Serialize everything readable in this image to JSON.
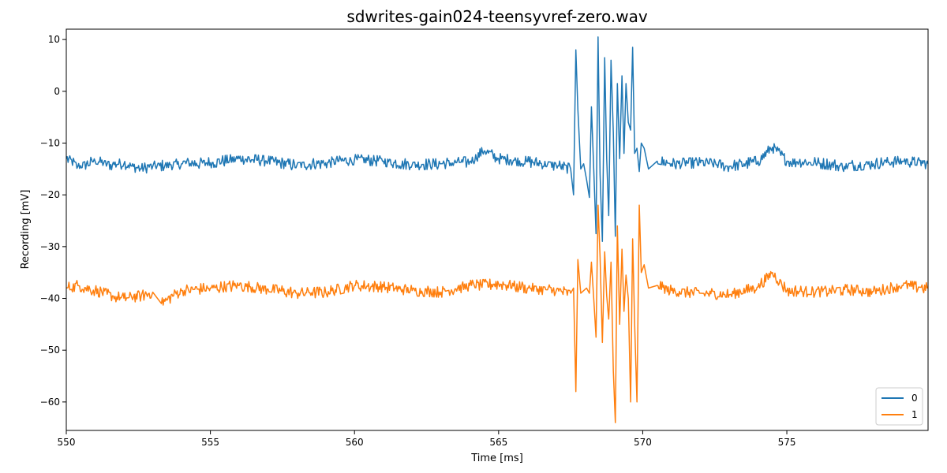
{
  "chart_data": {
    "type": "line",
    "title": "sdwrites-gain024-teensyvref-zero.wav",
    "xlabel": "Time [ms]",
    "ylabel": "Recording [mV]",
    "xlim": [
      550,
      579.9
    ],
    "ylim": [
      -65.5,
      12
    ],
    "xticks": [
      550,
      555,
      560,
      565,
      570,
      575
    ],
    "yticks": [
      10,
      0,
      -10,
      -20,
      -30,
      -40,
      -50,
      -60
    ],
    "xtick_labels": [
      "550",
      "555",
      "560",
      "565",
      "570",
      "575"
    ],
    "ytick_labels": [
      "10",
      "0",
      "−10",
      "−20",
      "−30",
      "−40",
      "−50",
      "−60"
    ],
    "grid": false,
    "legend_position": "bottom-right",
    "series": [
      {
        "name": "0",
        "color": "#1f77b4",
        "base": -14,
        "points": [
          [
            550,
            -13
          ],
          [
            550.4,
            -14.5
          ],
          [
            551,
            -13.5
          ],
          [
            551.6,
            -14.2
          ],
          [
            552,
            -14
          ],
          [
            552.6,
            -15
          ],
          [
            553,
            -14.5
          ],
          [
            554,
            -14
          ],
          [
            555,
            -13.8
          ],
          [
            556,
            -13
          ],
          [
            557,
            -13.5
          ],
          [
            558,
            -14.3
          ],
          [
            559,
            -13.8
          ],
          [
            560,
            -13.2
          ],
          [
            561,
            -13.5
          ],
          [
            562,
            -14.2
          ],
          [
            563,
            -14
          ],
          [
            564,
            -13.6
          ],
          [
            564.5,
            -11.5
          ],
          [
            565,
            -13
          ],
          [
            566,
            -13.6
          ],
          [
            567,
            -14.3
          ],
          [
            567.5,
            -15
          ],
          [
            567.6,
            -20
          ],
          [
            567.68,
            8
          ],
          [
            567.75,
            -3.5
          ],
          [
            567.85,
            -15
          ],
          [
            567.95,
            -14
          ],
          [
            568.05,
            -17
          ],
          [
            568.15,
            -20.5
          ],
          [
            568.22,
            -3
          ],
          [
            568.3,
            -15
          ],
          [
            568.38,
            -27.5
          ],
          [
            568.45,
            10.5
          ],
          [
            568.52,
            -16
          ],
          [
            568.6,
            -29
          ],
          [
            568.68,
            6.5
          ],
          [
            568.75,
            -13
          ],
          [
            568.82,
            -24
          ],
          [
            568.9,
            6
          ],
          [
            568.98,
            -8
          ],
          [
            569.05,
            -28
          ],
          [
            569.12,
            1.5
          ],
          [
            569.2,
            -13
          ],
          [
            569.28,
            3
          ],
          [
            569.35,
            -12
          ],
          [
            569.42,
            1.5
          ],
          [
            569.5,
            -6
          ],
          [
            569.58,
            -7.5
          ],
          [
            569.65,
            8.5
          ],
          [
            569.72,
            -12
          ],
          [
            569.8,
            -11
          ],
          [
            569.88,
            -15.5
          ],
          [
            569.95,
            -10
          ],
          [
            570.05,
            -11
          ],
          [
            570.2,
            -15
          ],
          [
            570.5,
            -13.5
          ],
          [
            571,
            -14
          ],
          [
            572,
            -13.8
          ],
          [
            573,
            -14.5
          ],
          [
            574,
            -13.5
          ],
          [
            574.5,
            -10.8
          ],
          [
            575,
            -13.5
          ],
          [
            576,
            -13.8
          ],
          [
            577,
            -14.5
          ],
          [
            578,
            -14
          ],
          [
            579,
            -13.5
          ],
          [
            579.9,
            -14
          ]
        ]
      },
      {
        "name": "1",
        "color": "#ff7f0e",
        "base": -38.5,
        "points": [
          [
            550,
            -38
          ],
          [
            550.4,
            -37.5
          ],
          [
            551,
            -38.5
          ],
          [
            551.6,
            -39.5
          ],
          [
            552,
            -40
          ],
          [
            552.6,
            -39.5
          ],
          [
            553,
            -38.8
          ],
          [
            553.3,
            -41
          ],
          [
            554,
            -38.5
          ],
          [
            555,
            -38
          ],
          [
            556,
            -37.5
          ],
          [
            557,
            -38.2
          ],
          [
            558,
            -39
          ],
          [
            559,
            -38.8
          ],
          [
            560,
            -37.5
          ],
          [
            561,
            -37.8
          ],
          [
            562,
            -38.5
          ],
          [
            563,
            -38.8
          ],
          [
            564,
            -37.5
          ],
          [
            565,
            -37.2
          ],
          [
            566,
            -38
          ],
          [
            567,
            -38.5
          ],
          [
            567.5,
            -39
          ],
          [
            567.6,
            -38
          ],
          [
            567.68,
            -58
          ],
          [
            567.75,
            -32.5
          ],
          [
            567.85,
            -39
          ],
          [
            567.95,
            -38.5
          ],
          [
            568.05,
            -38
          ],
          [
            568.15,
            -39
          ],
          [
            568.22,
            -33
          ],
          [
            568.3,
            -40
          ],
          [
            568.38,
            -47.5
          ],
          [
            568.45,
            -22
          ],
          [
            568.52,
            -32
          ],
          [
            568.6,
            -48.5
          ],
          [
            568.68,
            -31
          ],
          [
            568.75,
            -39.5
          ],
          [
            568.82,
            -44
          ],
          [
            568.9,
            -33
          ],
          [
            568.98,
            -54
          ],
          [
            569.05,
            -64
          ],
          [
            569.12,
            -26
          ],
          [
            569.2,
            -45
          ],
          [
            569.28,
            -30.5
          ],
          [
            569.35,
            -42.5
          ],
          [
            569.42,
            -35.5
          ],
          [
            569.5,
            -40
          ],
          [
            569.58,
            -60
          ],
          [
            569.65,
            -28.5
          ],
          [
            569.72,
            -45
          ],
          [
            569.8,
            -60
          ],
          [
            569.88,
            -22
          ],
          [
            569.95,
            -35
          ],
          [
            570.05,
            -33.5
          ],
          [
            570.2,
            -38
          ],
          [
            570.5,
            -37.5
          ],
          [
            571,
            -38.5
          ],
          [
            572,
            -39
          ],
          [
            573,
            -39.3
          ],
          [
            574,
            -37.8
          ],
          [
            574.5,
            -35
          ],
          [
            575,
            -38.5
          ],
          [
            576,
            -38.8
          ],
          [
            577,
            -38.3
          ],
          [
            578,
            -38.7
          ],
          [
            579,
            -37.5
          ],
          [
            579.9,
            -38
          ]
        ]
      }
    ]
  }
}
